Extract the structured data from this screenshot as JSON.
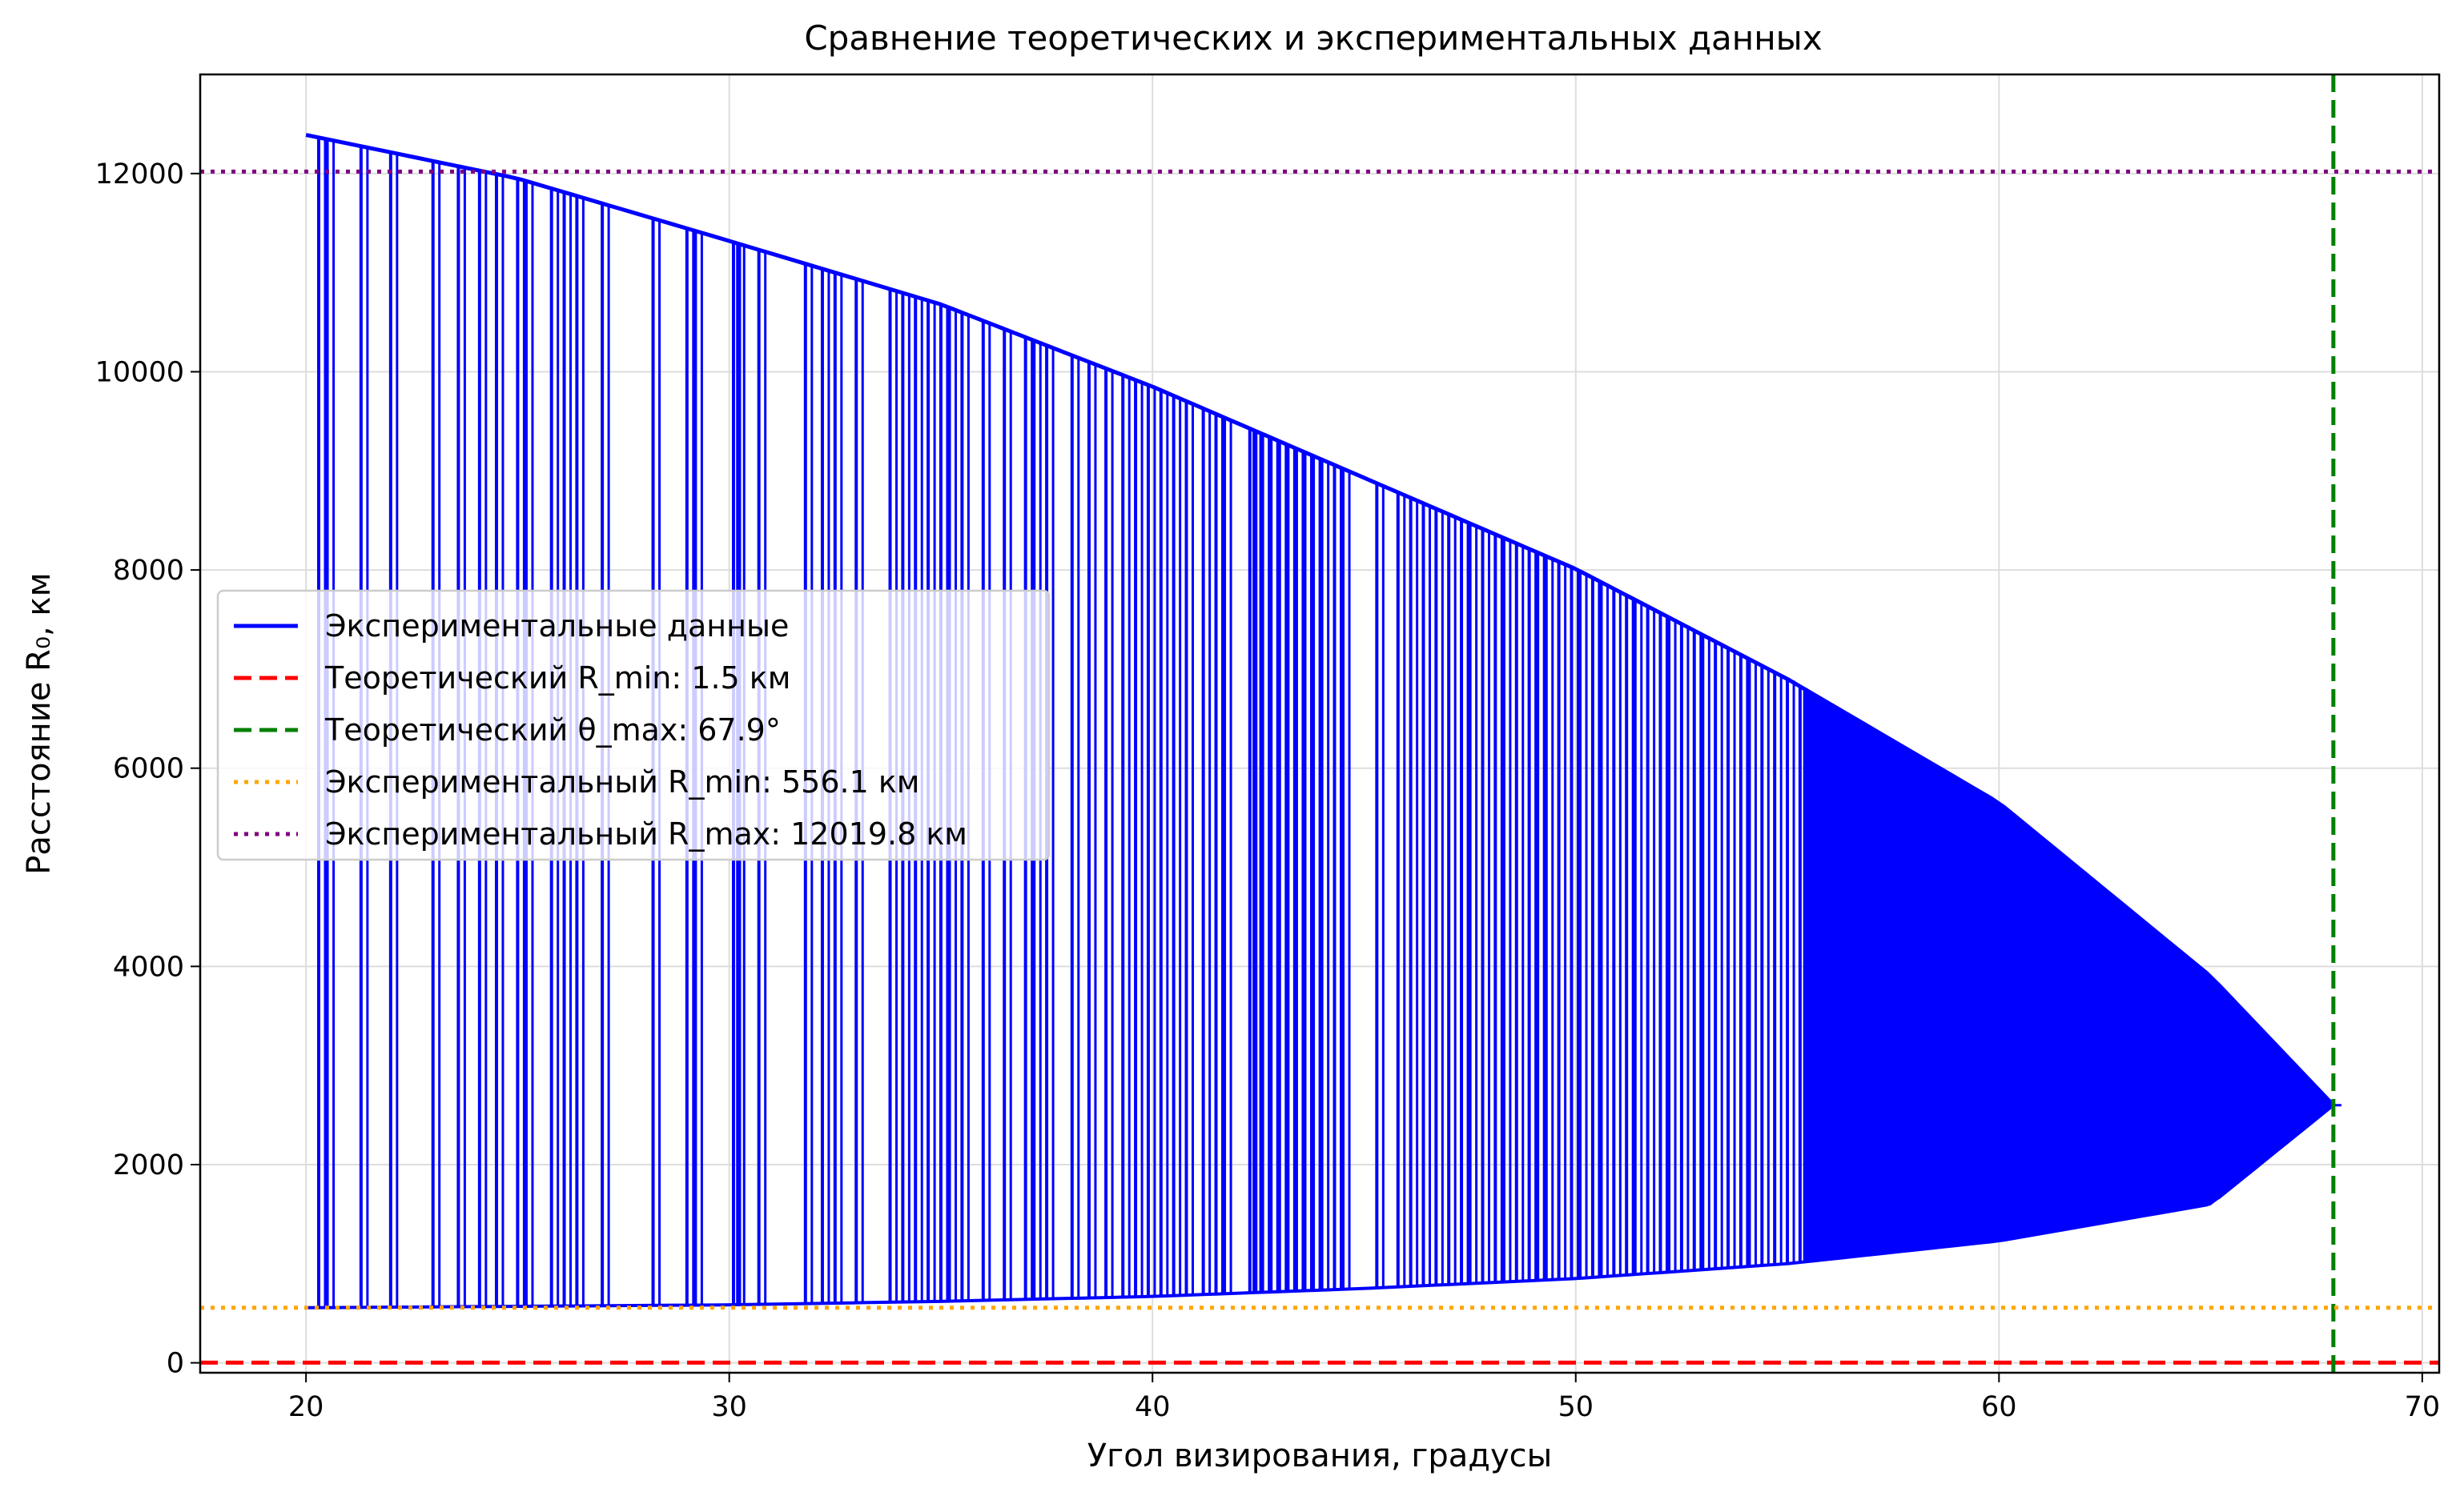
{
  "chart_data": {
    "type": "line",
    "title": "Сравнение теоретических и экспериментальных данных",
    "xlabel": "Угол визирования, градусы",
    "ylabel": "Расстояние R₀, км",
    "xlim": [
      17.5,
      70.4
    ],
    "ylim": [
      -100,
      13000
    ],
    "xticks": [
      20,
      30,
      40,
      50,
      60,
      70
    ],
    "yticks": [
      0,
      2000,
      4000,
      6000,
      8000,
      10000,
      12000
    ],
    "grid": true,
    "legend_position": "center-left",
    "series": [
      {
        "name": "Экспериментальные данные",
        "kind": "envelope",
        "color": "#0000ff",
        "upper_envelope": {
          "x": [
            20,
            25,
            30,
            35,
            40,
            45,
            50,
            55,
            60,
            65,
            67.9
          ],
          "y": [
            12390,
            11950,
            11320,
            10680,
            9850,
            8930,
            8010,
            6900,
            5650,
            3900,
            2600
          ]
        },
        "lower_envelope": {
          "x": [
            20,
            25,
            30,
            35,
            40,
            45,
            50,
            55,
            60,
            65,
            67.9
          ],
          "y": [
            556,
            570,
            585,
            620,
            670,
            750,
            850,
            1000,
            1230,
            1600,
            2600
          ]
        },
        "sample_angles": [
          20.3,
          20.5,
          21.3,
          22.0,
          23.0,
          23.6,
          24.1,
          24.5,
          25.0,
          25.2,
          25.8,
          26.1,
          26.4,
          27.0,
          28.2,
          29.0,
          29.2,
          30.1,
          30.2,
          30.7,
          31.8,
          32.2,
          32.5,
          33.0,
          33.8,
          34.1,
          34.4,
          34.7,
          35.0,
          35.2,
          35.5,
          36.0,
          36.5,
          37.0,
          37.2,
          37.5,
          38.1,
          38.5,
          38.9,
          39.3,
          39.6,
          39.9,
          40.2,
          40.5,
          40.8,
          41.2,
          41.5,
          41.7,
          42.3,
          42.4,
          42.6,
          42.8,
          43.0,
          43.2,
          43.4,
          43.6,
          43.8,
          44.0,
          44.3,
          44.5,
          45.3,
          45.8,
          46.1,
          46.4,
          46.7,
          47.0,
          47.3,
          47.5,
          47.8,
          48.1,
          48.3,
          48.6,
          48.9,
          49.1,
          49.3,
          49.6,
          49.9,
          50.1,
          50.4,
          50.6,
          50.9,
          51.2,
          51.4,
          51.7,
          52.0,
          52.2,
          52.5,
          52.8,
          53.0,
          53.3,
          53.6,
          53.9,
          54.1,
          54.4,
          54.7,
          55.0,
          55.3
        ]
      },
      {
        "name": "Теоретический R_min: 1.5 км",
        "kind": "hline",
        "y": 1.5,
        "color": "#ff0000",
        "dash": "dashed"
      },
      {
        "name": "Теоретический θ_max: 67.9°",
        "kind": "vline",
        "x": 67.9,
        "color": "#008000",
        "dash": "dashed"
      },
      {
        "name": "Экспериментальный R_min: 556.1 км",
        "kind": "hline",
        "y": 556.1,
        "color": "#ffa500",
        "dash": "dotted"
      },
      {
        "name": "Экспериментальный R_max: 12019.8 км",
        "kind": "hline",
        "y": 12019.8,
        "color": "#800080",
        "dash": "dotted"
      }
    ]
  }
}
